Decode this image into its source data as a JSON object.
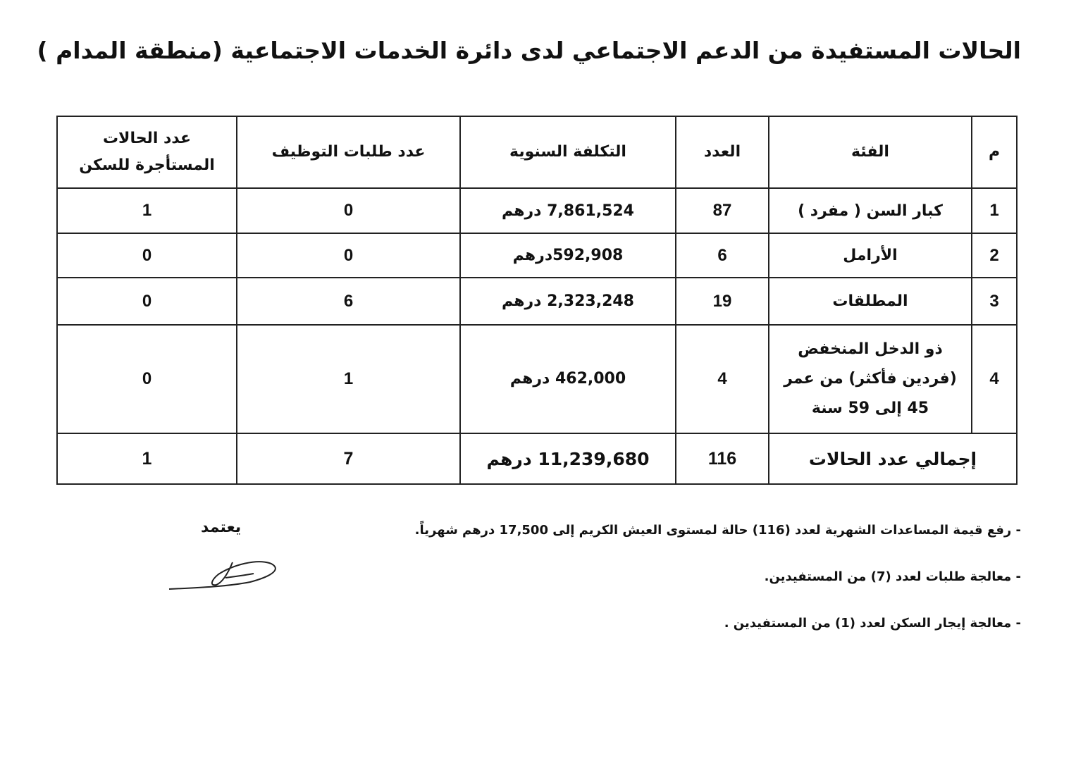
{
  "title": "الحالات المستفيدة من الدعم الاجتماعي لدى دائرة الخدمات الاجتماعية (منطقة المدام )",
  "table": {
    "headers": [
      "م",
      "الفئة",
      "العدد",
      "التكلفة السنوية",
      "عدد طلبات التوظيف",
      "عدد الحالات المستأجرة للسكن"
    ],
    "rows": [
      [
        "1",
        "كبار السن ( مفرد )",
        "87",
        "7,861,524 درهم",
        "0",
        "1"
      ],
      [
        "2",
        "الأرامل",
        "6",
        "592,908درهم",
        "0",
        "0"
      ],
      [
        "3",
        "المطلقات",
        "19",
        "2,323,248 درهم",
        "6",
        "0"
      ],
      [
        "4",
        "ذو الدخل المنخفض (فردين فأكثر) من عمر 45 إلى 59 سنة",
        "4",
        "462,000 درهم",
        "1",
        "0"
      ]
    ],
    "total": [
      "إجمالي عدد الحالات",
      "116",
      "11,239,680 درهم",
      "7",
      "1"
    ]
  },
  "notes": [
    "-  رفع قيمة المساعدات الشهرية لعدد (116) حالة لمستوى العيش الكريم  إلى 17,500 درهم شهرياً.",
    "-  معالجة طلبات لعدد (7) من المستفيدين.",
    "-  معالجة إيجار السكن لعدد (1) من المستفيدين ."
  ],
  "approval": "يعتمد"
}
